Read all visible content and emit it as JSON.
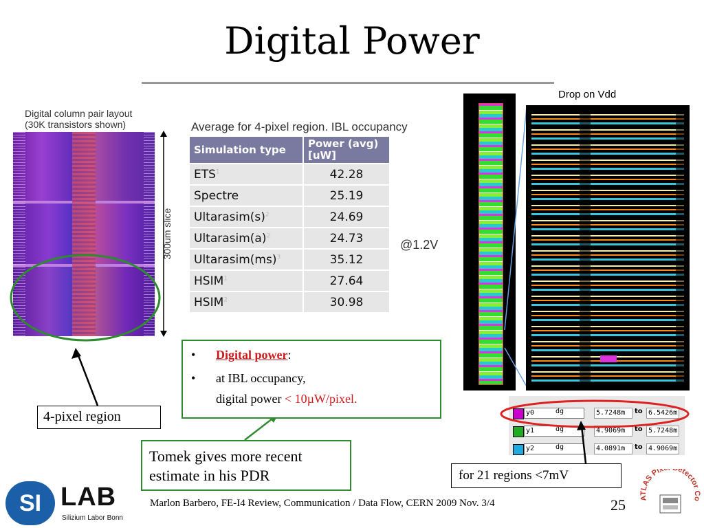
{
  "slide": {
    "title": "Digital Power",
    "layout_caption_line1": "Digital column pair layout",
    "layout_caption_line2": "(30K transistors shown)",
    "slice_label": "300um slice",
    "table_caption": "Average for 4-pixel region. IBL occupancy",
    "table": {
      "headers": [
        "Simulation type",
        "Power (avg) [uW]"
      ],
      "rows": [
        {
          "type": "ETS",
          "sup": "1",
          "power": "42.28"
        },
        {
          "type": "Spectre",
          "sup": "",
          "power": "25.19"
        },
        {
          "type": "Ultarasim(s)",
          "sup": "2",
          "power": "24.69"
        },
        {
          "type": "Ultarasim(a)",
          "sup": "2",
          "power": "24.73"
        },
        {
          "type": "Ultarasim(ms)",
          "sup": "3",
          "power": "35.12"
        },
        {
          "type": "HSIM",
          "sup": "1",
          "power": "27.64"
        },
        {
          "type": "HSIM",
          "sup": "2",
          "power": "30.98"
        }
      ]
    },
    "voltage_label": "@1.2V",
    "drop_label": "Drop on Vdd",
    "bullets": {
      "b1_label": "Digital power",
      "b1_colon": ":",
      "b2_line1": "at IBL occupancy,",
      "b2_line2_prefix": "digital power ",
      "b2_line2_value": "< 10µW/pixel."
    },
    "tomek_note_line1": "Tomek gives more recent",
    "tomek_note_line2": "estimate in his PDR",
    "pixel_region_label": "4-pixel region",
    "regions_label": "for 21 regions <7mV",
    "cad_rows": [
      {
        "name": "y0",
        "unit": "dg",
        "from": "5.7248m",
        "to_label": "to",
        "to": "6.5426m",
        "color": "#cc00cc"
      },
      {
        "name": "y1",
        "unit": "dg",
        "from": "4.9069m",
        "to_label": "to",
        "to": "5.7248m",
        "color": "#22aa22"
      },
      {
        "name": "y2",
        "unit": "dg",
        "from": "4.0891m",
        "to_label": "to",
        "to": "4.9069m",
        "color": "#22aadd"
      }
    ],
    "footer": "Marlon Barbero, FE-I4 Review, Communication / Data Flow, CERN 2009 Nov. 3/4",
    "page_number": "25",
    "logo_left_si": "SI",
    "logo_left_lab": "LAB",
    "logo_left_sub": "Silizium Labor Bonn",
    "logo_right_text": "ATLAS Pixel Detector Collaboration"
  }
}
